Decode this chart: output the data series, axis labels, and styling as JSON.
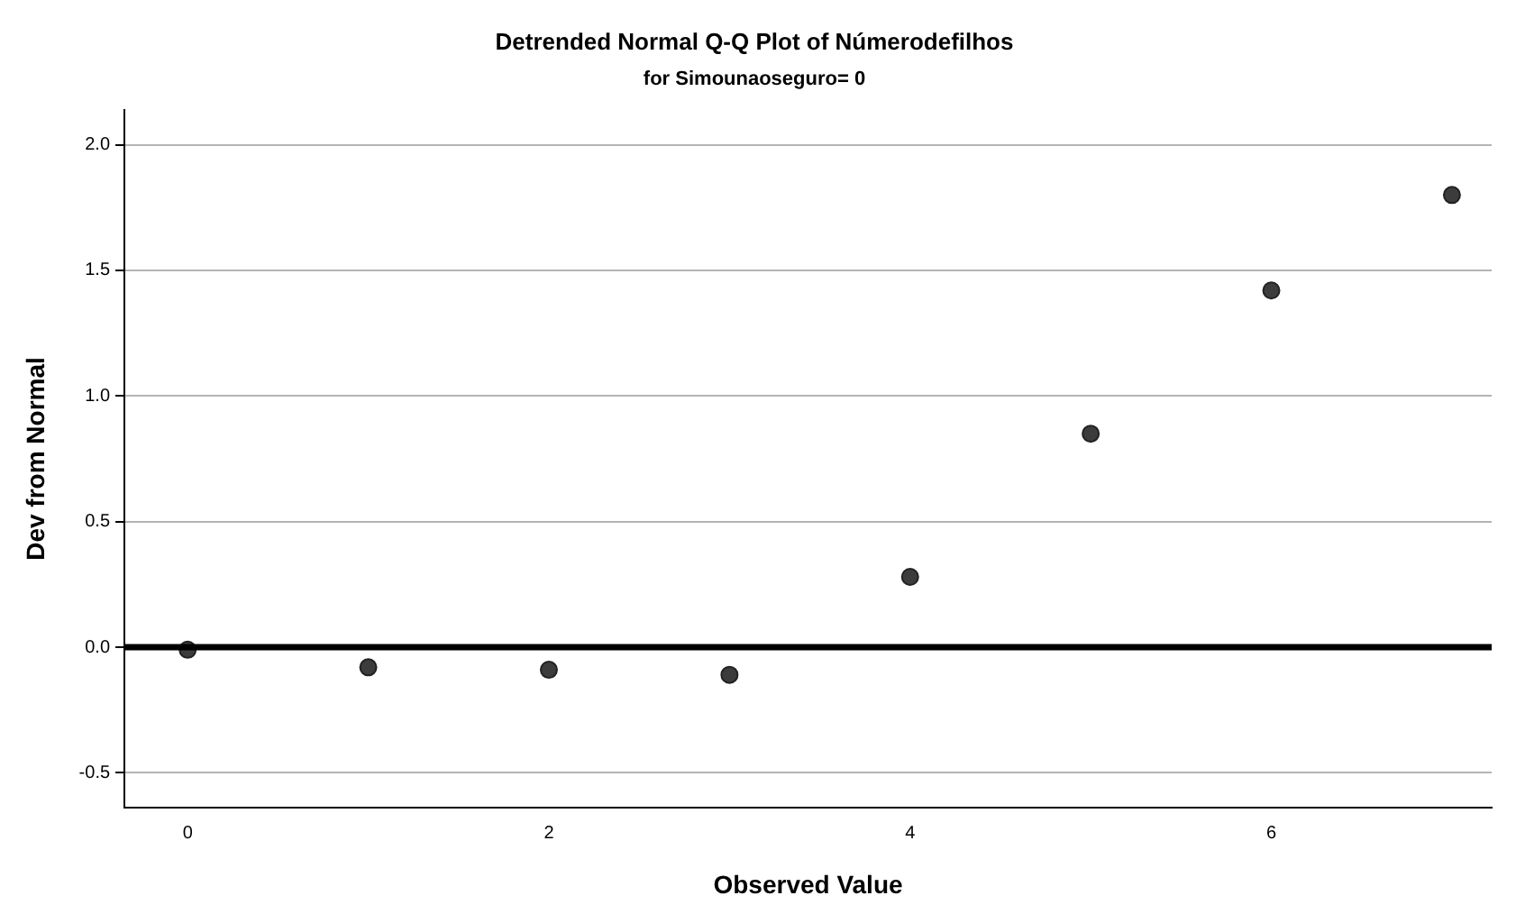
{
  "chart_data": {
    "type": "scatter",
    "title": "Detrended Normal Q-Q Plot of Númerodefilhos",
    "subtitle": "for Simounaoseguro= 0",
    "xlabel": "Observed Value",
    "ylabel": "Dev from Normal",
    "x": [
      0,
      1,
      2,
      3,
      4,
      5,
      6,
      7
    ],
    "series": [
      {
        "color": "#3c3c3c",
        "values": [
          -0.01,
          -0.08,
          -0.09,
          -0.11,
          0.28,
          0.85,
          1.42,
          1.8
        ]
      }
    ],
    "xlim": [
      -0.35,
      7.22
    ],
    "ylim": [
      -0.64,
      2.14
    ],
    "xticks": [
      0,
      2,
      4,
      6
    ],
    "yticks": [
      {
        "value": -0.5,
        "label": "-0.5"
      },
      {
        "value": 0,
        "label": "0.0"
      },
      {
        "value": 0.5,
        "label": "0.5"
      },
      {
        "value": 1,
        "label": "1.0"
      },
      {
        "value": 1.5,
        "label": "1.5"
      },
      {
        "value": 2,
        "label": "2.0"
      }
    ],
    "ref_lines": [
      {
        "axis": "y",
        "value": 0,
        "color": "#000000"
      }
    ],
    "grid": "y",
    "legend": false,
    "marker": "circle"
  }
}
